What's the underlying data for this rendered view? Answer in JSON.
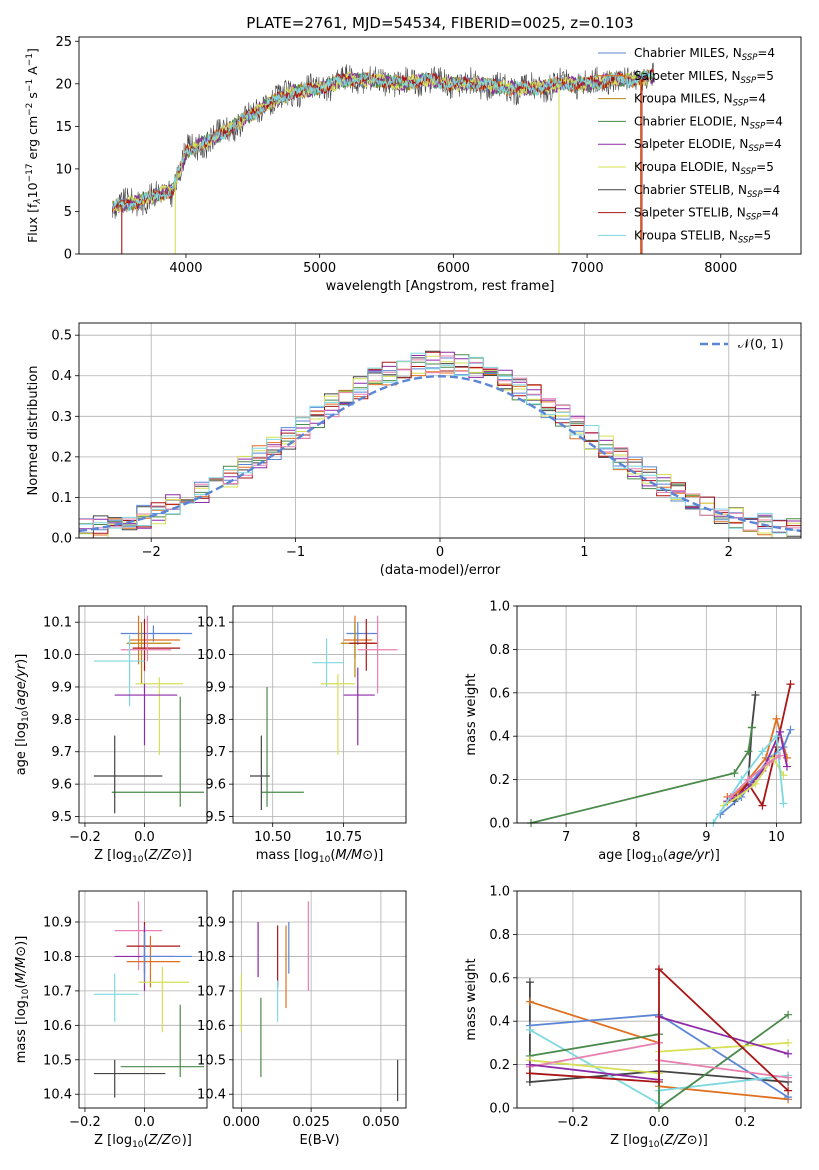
{
  "colors": {
    "chabrier_miles": "#5b86d6",
    "salpeter_miles": "#e07020",
    "kroupa_miles": "#b8860b",
    "chabrier_elodie": "#4a8a4a",
    "salpeter_elodie": "#8e2aa8",
    "kroupa_elodie": "#d6df55",
    "chabrier_stelib": "#444444",
    "salpeter_stelib": "#aa1515",
    "kroupa_stelib": "#7fd8e0",
    "pink": "#e880b0",
    "dark_green": "#5a8a60"
  },
  "chart_data": [
    {
      "id": "spectrum",
      "type": "line",
      "title": "PLATE=2761, MJD=54534, FIBERID=0025, z=0.103",
      "xlabel": "wavelength [Angstrom, rest frame]",
      "ylabel_parts": [
        "Flux [f",
        "λ",
        "10",
        "−17",
        " erg cm",
        "−2",
        " s",
        "−1",
        " A",
        "−1",
        "]"
      ],
      "xlim": [
        3200,
        8600
      ],
      "ylim": [
        0,
        25.5
      ],
      "xticks": [
        4000,
        5000,
        6000,
        7000,
        8000
      ],
      "yticks": [
        0,
        5,
        10,
        15,
        20,
        25
      ],
      "legend": [
        {
          "label": "Chabrier MILES, N",
          "sub": "SSP",
          "suffix": "=4",
          "color": "#5b86d6"
        },
        {
          "label": "Salpeter MILES, N",
          "sub": "SSP",
          "suffix": "=5",
          "color": "#e07020"
        },
        {
          "label": "Kroupa MILES, N",
          "sub": "SSP",
          "suffix": "=4",
          "color": "#b8860b"
        },
        {
          "label": "Chabrier ELODIE, N",
          "sub": "SSP",
          "suffix": "=4",
          "color": "#4a8a4a"
        },
        {
          "label": "Salpeter ELODIE, N",
          "sub": "SSP",
          "suffix": "=4",
          "color": "#8e2aa8"
        },
        {
          "label": "Kroupa ELODIE, N",
          "sub": "SSP",
          "suffix": "=5",
          "color": "#d6df55"
        },
        {
          "label": "Chabrier STELIB, N",
          "sub": "SSP",
          "suffix": "=4",
          "color": "#444444"
        },
        {
          "label": "Salpeter STELIB, N",
          "sub": "SSP",
          "suffix": "=4",
          "color": "#aa1515"
        },
        {
          "label": "Kroupa STELIB, N",
          "sub": "SSP",
          "suffix": "=5",
          "color": "#7fd8e0"
        }
      ],
      "continuum": {
        "x": [
          3450,
          3600,
          3800,
          3900,
          4000,
          4200,
          4400,
          4600,
          4800,
          5000,
          5200,
          5400,
          5600,
          5800,
          6000,
          6200,
          6400,
          6600,
          6800,
          7000,
          7200,
          7400,
          7500
        ],
        "y": [
          5.5,
          6.0,
          7.0,
          7.5,
          12.0,
          13.5,
          15.5,
          17.5,
          19.0,
          19.5,
          20.5,
          20.5,
          20.0,
          20.5,
          20.0,
          20.0,
          19.5,
          19.5,
          20.0,
          20.0,
          20.5,
          20.5,
          21.0
        ]
      },
      "drops": [
        {
          "x": 3520,
          "color": "#aa1515"
        },
        {
          "x": 3920,
          "color": "#d6df55"
        },
        {
          "x": 6790,
          "color": "#d6df55"
        },
        {
          "x": 7400,
          "color": "#e07020"
        },
        {
          "x": 7410,
          "color": "#aa1515"
        }
      ]
    },
    {
      "id": "residuals",
      "type": "histogram",
      "xlabel": "(data-model)/error",
      "ylabel": "Normed distribution",
      "xlim": [
        -2.5,
        2.5
      ],
      "ylim": [
        0,
        0.53
      ],
      "xticks": [
        -2,
        -1,
        0,
        1,
        2
      ],
      "xticklabels": [
        "−2",
        "−1",
        "0",
        "1",
        "2"
      ],
      "yticks": [
        0.0,
        0.1,
        0.2,
        0.3,
        0.4,
        0.5
      ],
      "bin_width": 0.1,
      "legend": {
        "label": "𝒩(0, 1)",
        "color": "#5b86d6"
      },
      "series": [
        {
          "color": "#444444",
          "seed": 1
        },
        {
          "color": "#e07020",
          "seed": 2
        },
        {
          "color": "#5b86d6",
          "seed": 3
        },
        {
          "color": "#4a8a4a",
          "seed": 4
        },
        {
          "color": "#8e2aa8",
          "seed": 5
        },
        {
          "color": "#d6df55",
          "seed": 6
        },
        {
          "color": "#aa1515",
          "seed": 7
        },
        {
          "color": "#e880b0",
          "seed": 8
        },
        {
          "color": "#7fd8e0",
          "seed": 9
        }
      ]
    },
    {
      "id": "age_vs_Z",
      "type": "errorbar",
      "xlabel": "Z [log10(Z/Z⊙)]",
      "ylabel": "age [log10(age/yr)]",
      "xlim": [
        -0.22,
        0.21
      ],
      "ylim": [
        9.48,
        10.15
      ],
      "xticks": [
        -0.2,
        0.0
      ],
      "xticklabels": [
        "−0.2",
        "0.0"
      ],
      "yticks": [
        9.5,
        9.6,
        9.7,
        9.8,
        9.9,
        10.0,
        10.1
      ],
      "points": [
        {
          "x": 0.03,
          "y": 10.065,
          "xl": -0.08,
          "xr": 0.16,
          "yl": 10.04,
          "yh": 10.09,
          "color": "#5b86d6"
        },
        {
          "x": -0.02,
          "y": 10.045,
          "xl": -0.05,
          "xr": 0.12,
          "yl": 9.97,
          "yh": 10.12,
          "color": "#e07020"
        },
        {
          "x": -0.01,
          "y": 10.035,
          "xl": -0.06,
          "xr": 0.09,
          "yl": 9.91,
          "yh": 10.1,
          "color": "#b8860b"
        },
        {
          "x": 0.0,
          "y": 10.02,
          "xl": -0.04,
          "xr": 0.12,
          "yl": 9.95,
          "yh": 10.11,
          "color": "#aa1515"
        },
        {
          "x": 0.01,
          "y": 10.015,
          "xl": -0.08,
          "xr": 0.09,
          "yl": 9.98,
          "yh": 10.12,
          "color": "#e880b0"
        },
        {
          "x": -0.05,
          "y": 9.98,
          "xl": -0.17,
          "xr": 0.0,
          "yl": 9.84,
          "yh": 10.06,
          "color": "#7fd8e0"
        },
        {
          "x": 0.05,
          "y": 9.91,
          "xl": -0.03,
          "xr": 0.13,
          "yl": 9.69,
          "yh": 9.93,
          "color": "#d6df55"
        },
        {
          "x": 0.0,
          "y": 9.875,
          "xl": -0.1,
          "xr": 0.11,
          "yl": 9.72,
          "yh": 9.91,
          "color": "#8e2aa8"
        },
        {
          "x": 0.12,
          "y": 9.575,
          "xl": -0.11,
          "xr": 0.2,
          "yl": 9.53,
          "yh": 9.87,
          "color": "#4a8a4a"
        },
        {
          "x": -0.1,
          "y": 9.625,
          "xl": -0.17,
          "xr": 0.06,
          "yl": 9.51,
          "yh": 9.75,
          "color": "#444444"
        }
      ]
    },
    {
      "id": "age_vs_mass",
      "type": "errorbar",
      "xlabel": "mass [log10(M/M⊙)]",
      "xlim": [
        10.36,
        10.97
      ],
      "ylim": [
        9.48,
        10.15
      ],
      "xticks": [
        10.5,
        10.75
      ],
      "xticklabels": [
        "10.50",
        "10.75"
      ],
      "yticks": [
        9.5,
        9.6,
        9.7,
        9.8,
        9.9,
        10.0,
        10.1
      ],
      "points": [
        {
          "x": 10.8,
          "y": 10.065,
          "xl": 10.76,
          "xr": 10.87,
          "yl": 10.03,
          "yh": 10.1,
          "color": "#5b86d6"
        },
        {
          "x": 10.79,
          "y": 10.045,
          "xl": 10.75,
          "xr": 10.85,
          "yl": 9.99,
          "yh": 10.12,
          "color": "#e07020"
        },
        {
          "x": 10.79,
          "y": 10.035,
          "xl": 10.74,
          "xr": 10.86,
          "yl": 9.93,
          "yh": 10.1,
          "color": "#b8860b"
        },
        {
          "x": 10.83,
          "y": 10.035,
          "xl": 10.77,
          "xr": 10.87,
          "yl": 9.95,
          "yh": 10.11,
          "color": "#aa1515"
        },
        {
          "x": 10.87,
          "y": 10.015,
          "xl": 10.8,
          "xr": 10.94,
          "yl": 9.88,
          "yh": 10.12,
          "color": "#e880b0"
        },
        {
          "x": 10.69,
          "y": 9.975,
          "xl": 10.64,
          "xr": 10.75,
          "yl": 9.9,
          "yh": 10.05,
          "color": "#7fd8e0"
        },
        {
          "x": 10.73,
          "y": 9.91,
          "xl": 10.67,
          "xr": 10.79,
          "yl": 9.69,
          "yh": 9.94,
          "color": "#d6df55"
        },
        {
          "x": 10.8,
          "y": 9.875,
          "xl": 10.75,
          "xr": 10.86,
          "yl": 9.72,
          "yh": 9.96,
          "color": "#8e2aa8"
        },
        {
          "x": 10.48,
          "y": 9.575,
          "xl": 10.46,
          "xr": 10.61,
          "yl": 9.53,
          "yh": 9.9,
          "color": "#4a8a4a"
        },
        {
          "x": 10.46,
          "y": 9.625,
          "xl": 10.42,
          "xr": 10.49,
          "yl": 9.52,
          "yh": 9.75,
          "color": "#444444"
        }
      ]
    },
    {
      "id": "weight_vs_age",
      "type": "line",
      "xlabel": "age [log10(age/yr)]",
      "ylabel": "mass weight",
      "xlim": [
        6.3,
        10.35
      ],
      "ylim": [
        0,
        1.0
      ],
      "xticks": [
        7,
        8,
        9,
        10
      ],
      "yticks": [
        0.0,
        0.2,
        0.4,
        0.6,
        0.8,
        1.0
      ],
      "series": [
        {
          "color": "#444444",
          "x": [
            9.4,
            9.5,
            9.6,
            9.65,
            9.7
          ],
          "y": [
            0.1,
            0.14,
            0.2,
            0.44,
            0.59
          ]
        },
        {
          "color": "#4a8a4a",
          "x": [
            6.5,
            9.4,
            9.6,
            9.65
          ],
          "y": [
            0.0,
            0.23,
            0.33,
            0.44
          ]
        },
        {
          "color": "#aa1515",
          "x": [
            9.3,
            9.5,
            9.6,
            9.8,
            10.0,
            10.2
          ],
          "y": [
            0.1,
            0.15,
            0.18,
            0.08,
            0.35,
            0.64
          ]
        },
        {
          "color": "#e07020",
          "x": [
            9.3,
            9.45,
            9.6,
            9.85,
            10.0,
            10.15
          ],
          "y": [
            0.12,
            0.14,
            0.2,
            0.3,
            0.48,
            0.3
          ]
        },
        {
          "color": "#5b86d6",
          "x": [
            9.2,
            9.5,
            9.65,
            9.9,
            10.1,
            10.2
          ],
          "y": [
            0.04,
            0.12,
            0.19,
            0.3,
            0.35,
            0.43
          ]
        },
        {
          "color": "#8e2aa8",
          "x": [
            9.3,
            9.6,
            9.8,
            10.05,
            10.15
          ],
          "y": [
            0.1,
            0.16,
            0.24,
            0.42,
            0.26
          ]
        },
        {
          "color": "#d6df55",
          "x": [
            9.25,
            9.45,
            9.7,
            9.95,
            10.1
          ],
          "y": [
            0.08,
            0.12,
            0.18,
            0.3,
            0.22
          ]
        },
        {
          "color": "#7fd8e0",
          "x": [
            9.1,
            9.5,
            9.8,
            10.0,
            10.1
          ],
          "y": [
            0.0,
            0.2,
            0.33,
            0.4,
            0.09
          ]
        },
        {
          "color": "#e880b0",
          "x": [
            9.35,
            9.6,
            9.9,
            10.05
          ],
          "y": [
            0.12,
            0.2,
            0.28,
            0.31
          ]
        }
      ]
    },
    {
      "id": "mass_vs_Z",
      "type": "errorbar",
      "xlabel": "Z [log10(Z/Z⊙)]",
      "ylabel": "mass [log10(M/M⊙)]",
      "xlim": [
        -0.22,
        0.21
      ],
      "ylim": [
        10.36,
        10.99
      ],
      "xticks": [
        -0.2,
        0.0
      ],
      "xticklabels": [
        "−0.2",
        "0.0"
      ],
      "yticks": [
        10.4,
        10.5,
        10.6,
        10.7,
        10.8,
        10.9
      ],
      "points": [
        {
          "x": -0.02,
          "y": 10.875,
          "xl": -0.1,
          "xr": 0.06,
          "yl": 10.76,
          "yh": 10.96,
          "color": "#e880b0"
        },
        {
          "x": 0.0,
          "y": 10.83,
          "xl": -0.06,
          "xr": 0.12,
          "yl": 10.75,
          "yh": 10.9,
          "color": "#aa1515"
        },
        {
          "x": 0.0,
          "y": 10.8,
          "xl": -0.1,
          "xr": 0.1,
          "yl": 10.7,
          "yh": 10.89,
          "color": "#8e2aa8"
        },
        {
          "x": 0.02,
          "y": 10.785,
          "xl": -0.06,
          "xr": 0.12,
          "yl": 10.71,
          "yh": 10.86,
          "color": "#e07020"
        },
        {
          "x": 0.0,
          "y": 10.8,
          "xl": -0.01,
          "xr": 0.16,
          "yl": 10.73,
          "yh": 10.87,
          "color": "#5b86d6"
        },
        {
          "x": 0.06,
          "y": 10.725,
          "xl": -0.02,
          "xr": 0.15,
          "yl": 10.58,
          "yh": 10.77,
          "color": "#d6df55"
        },
        {
          "x": -0.1,
          "y": 10.69,
          "xl": -0.17,
          "xr": -0.02,
          "yl": 10.61,
          "yh": 10.75,
          "color": "#7fd8e0"
        },
        {
          "x": 0.12,
          "y": 10.48,
          "xl": -0.08,
          "xr": 0.2,
          "yl": 10.45,
          "yh": 10.66,
          "color": "#4a8a4a"
        },
        {
          "x": -0.1,
          "y": 10.46,
          "xl": -0.17,
          "xr": 0.07,
          "yl": 10.39,
          "yh": 10.5,
          "color": "#444444"
        }
      ]
    },
    {
      "id": "mass_vs_ebv",
      "type": "errorbar",
      "xlabel": "E(B-V)",
      "xlim": [
        -0.003,
        0.059
      ],
      "ylim": [
        10.36,
        10.99
      ],
      "xticks": [
        0.0,
        0.025,
        0.05
      ],
      "xticklabels": [
        "0.000",
        "0.025",
        "0.050"
      ],
      "yticks": [
        10.4,
        10.5,
        10.6,
        10.7,
        10.8,
        10.9
      ],
      "points": [
        {
          "x": 0.006,
          "y": 10.82,
          "yl": 10.74,
          "yh": 10.9,
          "color": "#8e2aa8"
        },
        {
          "x": 0.0,
          "y": 10.66,
          "yl": 10.58,
          "yh": 10.75,
          "color": "#d6df55"
        },
        {
          "x": 0.007,
          "y": 10.57,
          "yl": 10.45,
          "yh": 10.68,
          "color": "#4a8a4a"
        },
        {
          "x": 0.013,
          "y": 10.8,
          "yl": 10.71,
          "yh": 10.89,
          "color": "#aa1515"
        },
        {
          "x": 0.013,
          "y": 10.67,
          "yl": 10.61,
          "yh": 10.73,
          "color": "#7fd8e0"
        },
        {
          "x": 0.016,
          "y": 10.76,
          "yl": 10.65,
          "yh": 10.89,
          "color": "#e07020"
        },
        {
          "x": 0.017,
          "y": 10.82,
          "yl": 10.75,
          "yh": 10.9,
          "color": "#5b86d6"
        },
        {
          "x": 0.024,
          "y": 10.83,
          "yl": 10.7,
          "yh": 10.96,
          "color": "#e880b0"
        },
        {
          "x": 0.056,
          "y": 10.44,
          "yl": 10.38,
          "yh": 10.5,
          "color": "#444444"
        }
      ]
    },
    {
      "id": "weight_vs_Z",
      "type": "line",
      "xlabel": "Z [log10(Z/Z⊙)]",
      "ylabel": "mass weight",
      "xlim": [
        -0.33,
        0.33
      ],
      "ylim": [
        0,
        1.0
      ],
      "xticks": [
        -0.2,
        0.0,
        0.2
      ],
      "xticklabels": [
        "−0.2",
        "0.0",
        "0.2"
      ],
      "yticks": [
        0.0,
        0.2,
        0.4,
        0.6,
        0.8,
        1.0
      ],
      "series": [
        {
          "color": "#444444",
          "x": [
            -0.3,
            -0.3,
            0.0,
            0.3
          ],
          "y": [
            0.58,
            0.12,
            0.17,
            0.12
          ]
        },
        {
          "color": "#e07020",
          "x": [
            -0.3,
            0.0,
            0.0,
            0.3
          ],
          "y": [
            0.49,
            0.3,
            0.1,
            0.04
          ]
        },
        {
          "color": "#5b86d6",
          "x": [
            -0.3,
            0.0,
            0.3
          ],
          "y": [
            0.38,
            0.43,
            0.05
          ]
        },
        {
          "color": "#7fd8e0",
          "x": [
            -0.3,
            0.0,
            0.0,
            0.3
          ],
          "y": [
            0.36,
            0.02,
            0.08,
            0.15
          ]
        },
        {
          "color": "#4a8a4a",
          "x": [
            -0.3,
            0.0,
            0.0,
            0.3
          ],
          "y": [
            0.24,
            0.34,
            0.0,
            0.43
          ]
        },
        {
          "color": "#d6df55",
          "x": [
            -0.3,
            0.0,
            0.0,
            0.3
          ],
          "y": [
            0.22,
            0.16,
            0.26,
            0.3
          ]
        },
        {
          "color": "#e880b0",
          "x": [
            -0.3,
            0.0,
            0.0,
            0.3
          ],
          "y": [
            0.19,
            0.3,
            0.22,
            0.14
          ]
        },
        {
          "color": "#8e2aa8",
          "x": [
            -0.3,
            0.0,
            0.0,
            0.3
          ],
          "y": [
            0.2,
            0.13,
            0.42,
            0.25
          ]
        },
        {
          "color": "#aa1515",
          "x": [
            -0.3,
            0.0,
            0.0,
            0.3
          ],
          "y": [
            0.16,
            0.12,
            0.64,
            0.08
          ]
        }
      ]
    }
  ]
}
